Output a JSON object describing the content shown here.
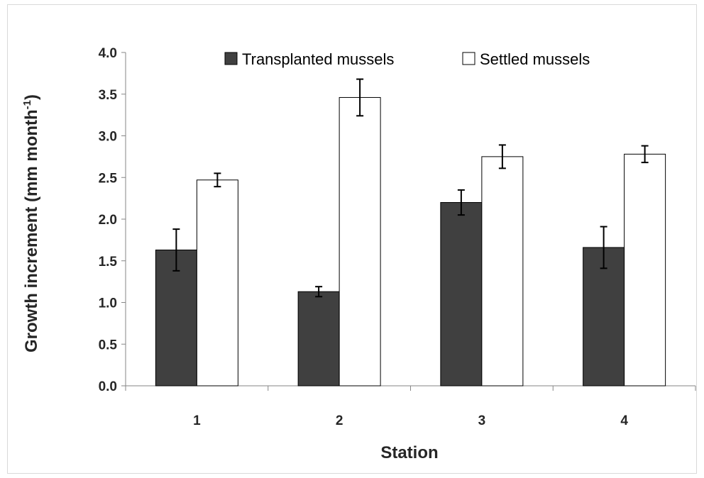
{
  "chart_data": {
    "type": "bar",
    "title": "",
    "xlabel": "Station",
    "ylabel_main": "Growth increment (mm month",
    "ylabel_sup": "-1",
    "ylabel_close": ")",
    "categories": [
      "1",
      "2",
      "3",
      "4"
    ],
    "ylim": [
      0,
      4.0
    ],
    "yticks": [
      "0.0",
      "0.5",
      "1.0",
      "1.5",
      "2.0",
      "2.5",
      "3.0",
      "3.5",
      "4.0"
    ],
    "grid": false,
    "legend_position": "top",
    "series": [
      {
        "name": "Transplanted mussels",
        "color": "#404040",
        "values": [
          1.63,
          1.13,
          2.2,
          1.66
        ],
        "errors": [
          0.25,
          0.06,
          0.15,
          0.25
        ]
      },
      {
        "name": "Settled mussels",
        "color": "#ffffff",
        "values": [
          2.47,
          3.46,
          2.75,
          2.78
        ],
        "errors": [
          0.08,
          0.22,
          0.14,
          0.1
        ]
      }
    ]
  }
}
